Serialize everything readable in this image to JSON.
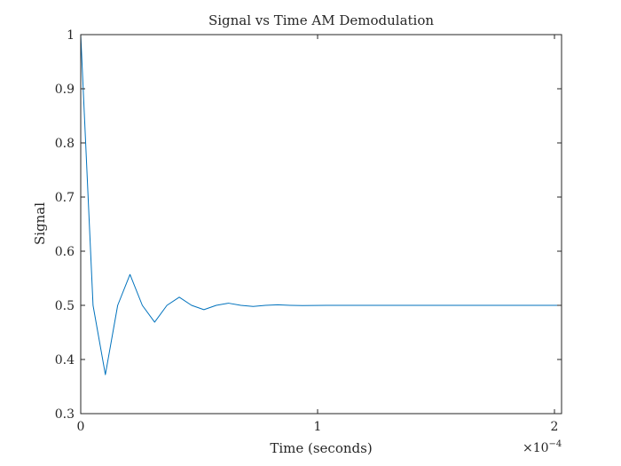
{
  "chart_data": {
    "type": "line",
    "title": "Signal vs Time AM Demodulation",
    "xlabel": "Time (seconds)",
    "ylabel": "Signal",
    "x_exponent_label": "×10",
    "x_exponent_power": "−4",
    "xlim": [
      0,
      2.03
    ],
    "ylim": [
      0.3,
      1.0
    ],
    "xticks": [
      0,
      1,
      2
    ],
    "xtick_labels": [
      "0",
      "1",
      "2"
    ],
    "yticks": [
      0.3,
      0.4,
      0.5,
      0.6,
      0.7,
      0.8,
      0.9,
      1.0
    ],
    "ytick_labels": [
      "0.3",
      "0.4",
      "0.5",
      "0.6",
      "0.7",
      "0.8",
      "0.9",
      "1"
    ],
    "grid": false,
    "box": true,
    "series": [
      {
        "color": "#0072BD",
        "x": [
          0,
          0.052,
          0.104,
          0.156,
          0.208,
          0.26,
          0.312,
          0.364,
          0.416,
          0.468,
          0.52,
          0.572,
          0.624,
          0.676,
          0.728,
          0.78,
          0.832,
          0.884,
          0.936,
          1.04,
          1.2,
          1.4,
          1.6,
          1.8,
          2.03
        ],
        "y": [
          1.0,
          0.5,
          0.372,
          0.5,
          0.557,
          0.5,
          0.469,
          0.5,
          0.515,
          0.5,
          0.492,
          0.5,
          0.504,
          0.5,
          0.498,
          0.5,
          0.501,
          0.5,
          0.4995,
          0.5,
          0.5,
          0.5,
          0.5,
          0.5,
          0.5
        ]
      }
    ]
  }
}
